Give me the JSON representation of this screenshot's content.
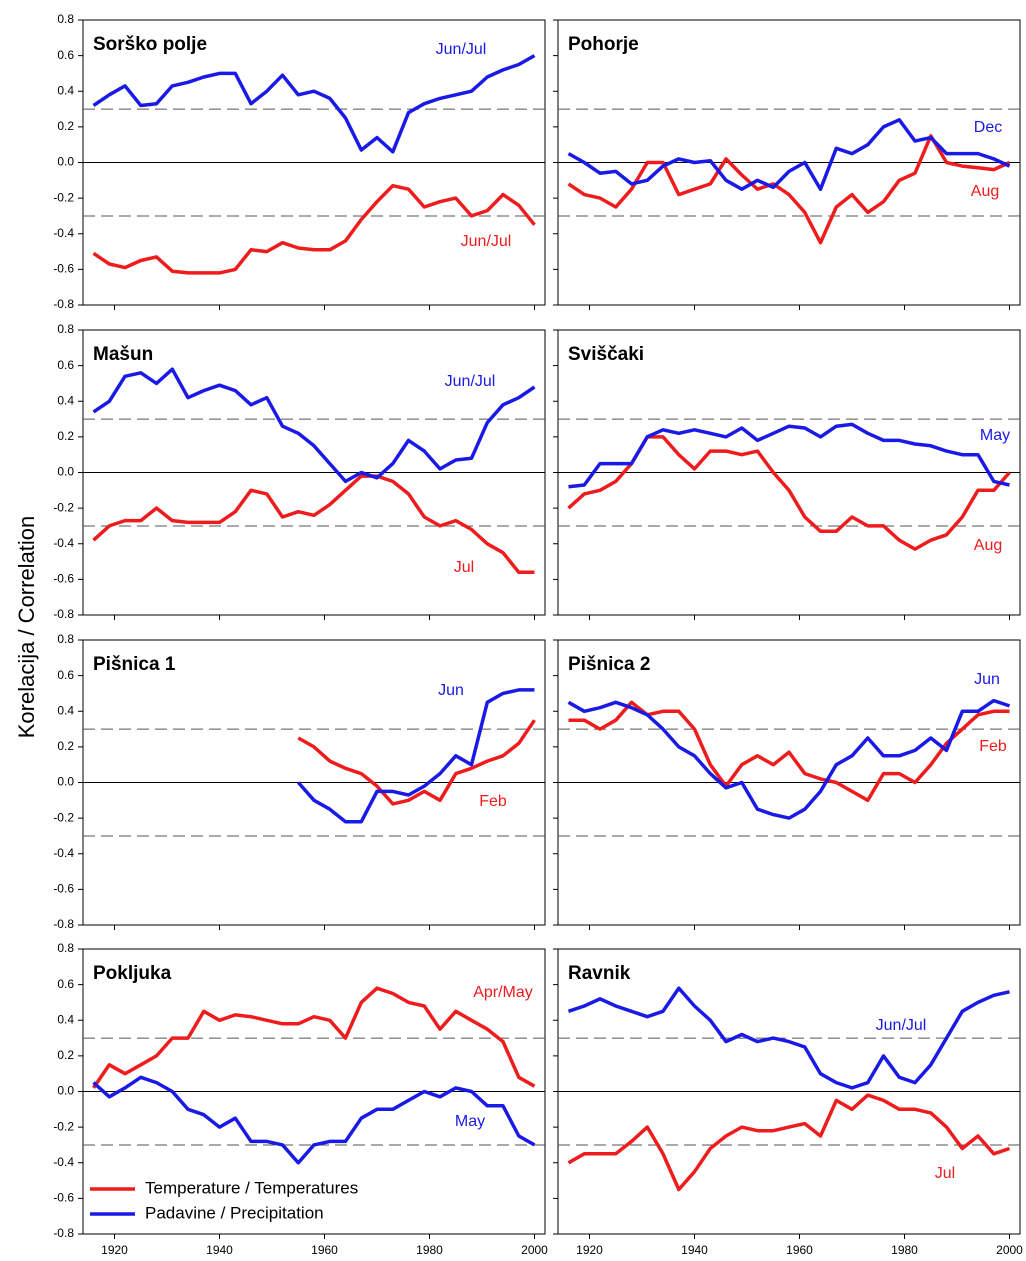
{
  "ylabel": "Korelacija / Correlation",
  "chart_data": [
    {
      "type": "line",
      "title": "Sorško polje",
      "x": [
        1916,
        1919,
        1922,
        1925,
        1928,
        1931,
        1934,
        1937,
        1940,
        1943,
        1946,
        1949,
        1952,
        1955,
        1958,
        1961,
        1964,
        1967,
        1970,
        1973,
        1976,
        1979,
        1982,
        1985,
        1988,
        1991,
        1994,
        1997,
        2000
      ],
      "series": [
        {
          "label": "Jun/Jul",
          "color": "#ee1c1c",
          "values": [
            -0.51,
            -0.57,
            -0.59,
            -0.55,
            -0.53,
            -0.61,
            -0.62,
            -0.62,
            -0.62,
            -0.6,
            -0.49,
            -0.5,
            -0.45,
            -0.48,
            -0.49,
            -0.49,
            -0.44,
            -0.32,
            -0.22,
            -0.13,
            -0.15,
            -0.25,
            -0.22,
            -0.2,
            -0.3,
            -0.27,
            -0.18,
            -0.24,
            -0.35
          ]
        },
        {
          "label": "Jun/Jul",
          "color": "#1a1ae6",
          "values": [
            0.32,
            0.38,
            0.43,
            0.32,
            0.33,
            0.43,
            0.45,
            0.48,
            0.5,
            0.5,
            0.33,
            0.4,
            0.49,
            0.38,
            0.4,
            0.36,
            0.25,
            0.07,
            0.14,
            0.06,
            0.28,
            0.33,
            0.36,
            0.38,
            0.4,
            0.48,
            0.52,
            0.55,
            0.6
          ]
        }
      ],
      "xlim": [
        1914,
        2002
      ],
      "xticks": [
        1920,
        1940,
        1960,
        1980,
        2000
      ],
      "ylim": [
        -0.8,
        0.8
      ],
      "yticks": [
        -0.8,
        -0.6,
        -0.4,
        -0.2,
        {
          "value": 0,
          "label": "0.0"
        },
        0.2,
        0.4,
        0.6,
        0.8
      ],
      "hlines": [
        {
          "value": 0.3,
          "style": "dashed"
        },
        {
          "value": 0,
          "style": "solid"
        },
        {
          "value": -0.3,
          "style": "dashed"
        }
      ]
    },
    {
      "type": "line",
      "title": "Pohorje",
      "x": [
        1916,
        1919,
        1922,
        1925,
        1928,
        1931,
        1934,
        1937,
        1940,
        1943,
        1946,
        1949,
        1952,
        1955,
        1958,
        1961,
        1964,
        1967,
        1970,
        1973,
        1976,
        1979,
        1982,
        1985,
        1988,
        1991,
        1994,
        1997,
        2000
      ],
      "series": [
        {
          "label": "Aug",
          "color": "#ee1c1c",
          "values": [
            -0.12,
            -0.18,
            -0.2,
            -0.25,
            -0.15,
            0,
            0,
            -0.18,
            -0.15,
            -0.12,
            0.02,
            -0.07,
            -0.15,
            -0.12,
            -0.18,
            -0.28,
            -0.45,
            -0.25,
            -0.18,
            -0.28,
            -0.22,
            -0.1,
            -0.06,
            0.15,
            0,
            -0.02,
            -0.03,
            -0.04,
            0
          ]
        },
        {
          "label": "Dec",
          "color": "#1a1ae6",
          "values": [
            0.05,
            0,
            -0.06,
            -0.05,
            -0.12,
            -0.1,
            -0.02,
            0.02,
            0,
            0.01,
            -0.1,
            -0.15,
            -0.1,
            -0.14,
            -0.05,
            0,
            -0.15,
            0.08,
            0.05,
            0.1,
            0.2,
            0.24,
            0.12,
            0.14,
            0.05,
            0.05,
            0.05,
            0.02,
            -0.02
          ]
        }
      ],
      "xlim": [
        1914,
        2002
      ],
      "xticks": [
        1920,
        1940,
        1960,
        1980,
        2000
      ],
      "ylim": [
        -0.8,
        0.8
      ],
      "yticks": [
        -0.8,
        -0.6,
        -0.4,
        -0.2,
        {
          "value": 0,
          "label": "0.0"
        },
        0.2,
        0.4,
        0.6,
        0.8
      ],
      "hlines": [
        {
          "value": 0.3,
          "style": "dashed"
        },
        {
          "value": 0,
          "style": "solid"
        },
        {
          "value": -0.3,
          "style": "dashed"
        }
      ]
    },
    {
      "type": "line",
      "title": "Mašun",
      "x": [
        1916,
        1919,
        1922,
        1925,
        1928,
        1931,
        1934,
        1937,
        1940,
        1943,
        1946,
        1949,
        1952,
        1955,
        1958,
        1961,
        1964,
        1967,
        1970,
        1973,
        1976,
        1979,
        1982,
        1985,
        1988,
        1991,
        1994,
        1997,
        2000
      ],
      "series": [
        {
          "label": "Jul",
          "color": "#ee1c1c",
          "values": [
            -0.38,
            -0.3,
            -0.27,
            -0.27,
            -0.2,
            -0.27,
            -0.28,
            -0.28,
            -0.28,
            -0.22,
            -0.1,
            -0.12,
            -0.25,
            -0.22,
            -0.24,
            -0.18,
            -0.1,
            -0.02,
            -0.02,
            -0.05,
            -0.12,
            -0.25,
            -0.3,
            -0.27,
            -0.32,
            -0.4,
            -0.45,
            -0.56,
            -0.56
          ]
        },
        {
          "label": "Jun/Jul",
          "color": "#1a1ae6",
          "values": [
            0.34,
            0.4,
            0.54,
            0.56,
            0.5,
            0.58,
            0.42,
            0.46,
            0.49,
            0.46,
            0.38,
            0.42,
            0.26,
            0.22,
            0.15,
            0.05,
            -0.05,
            0,
            -0.03,
            0.05,
            0.18,
            0.12,
            0.02,
            0.07,
            0.08,
            0.28,
            0.38,
            0.42,
            0.48
          ]
        }
      ],
      "xlim": [
        1914,
        2002
      ],
      "xticks": [
        1920,
        1940,
        1960,
        1980,
        2000
      ],
      "ylim": [
        -0.8,
        0.8
      ],
      "yticks": [
        -0.8,
        -0.6,
        -0.4,
        -0.2,
        {
          "value": 0,
          "label": "0.0"
        },
        0.2,
        0.4,
        0.6,
        0.8
      ],
      "hlines": [
        {
          "value": 0.3,
          "style": "dashed"
        },
        {
          "value": 0,
          "style": "solid"
        },
        {
          "value": -0.3,
          "style": "dashed"
        }
      ]
    },
    {
      "type": "line",
      "title": "Sviščaki",
      "x": [
        1916,
        1919,
        1922,
        1925,
        1928,
        1931,
        1934,
        1937,
        1940,
        1943,
        1946,
        1949,
        1952,
        1955,
        1958,
        1961,
        1964,
        1967,
        1970,
        1973,
        1976,
        1979,
        1982,
        1985,
        1988,
        1991,
        1994,
        1997,
        2000
      ],
      "series": [
        {
          "label": "Aug",
          "color": "#ee1c1c",
          "values": [
            -0.2,
            -0.12,
            -0.1,
            -0.05,
            0.05,
            0.2,
            0.2,
            0.1,
            0.02,
            0.12,
            0.12,
            0.1,
            0.12,
            0,
            -0.1,
            -0.25,
            -0.33,
            -0.33,
            -0.25,
            -0.3,
            -0.3,
            -0.38,
            -0.43,
            -0.38,
            -0.35,
            -0.25,
            -0.1,
            -0.1,
            0
          ]
        },
        {
          "label": "May",
          "color": "#1a1ae6",
          "values": [
            -0.08,
            -0.07,
            0.05,
            0.05,
            0.05,
            0.2,
            0.24,
            0.22,
            0.24,
            0.22,
            0.2,
            0.25,
            0.18,
            0.22,
            0.26,
            0.25,
            0.2,
            0.26,
            0.27,
            0.22,
            0.18,
            0.18,
            0.16,
            0.15,
            0.12,
            0.1,
            0.1,
            -0.05,
            -0.07
          ]
        }
      ],
      "xlim": [
        1914,
        2002
      ],
      "xticks": [
        1920,
        1940,
        1960,
        1980,
        2000
      ],
      "ylim": [
        -0.8,
        0.8
      ],
      "yticks": [
        -0.8,
        -0.6,
        -0.4,
        -0.2,
        {
          "value": 0,
          "label": "0.0"
        },
        0.2,
        0.4,
        0.6,
        0.8
      ],
      "hlines": [
        {
          "value": 0.3,
          "style": "dashed"
        },
        {
          "value": 0,
          "style": "solid"
        },
        {
          "value": -0.3,
          "style": "dashed"
        }
      ]
    },
    {
      "type": "line",
      "title": "Pišnica 1",
      "x": [
        1916,
        1919,
        1922,
        1925,
        1928,
        1931,
        1934,
        1937,
        1940,
        1943,
        1946,
        1949,
        1952,
        1955,
        1958,
        1961,
        1964,
        1967,
        1970,
        1973,
        1976,
        1979,
        1982,
        1985,
        1988,
        1991,
        1994,
        1997,
        2000
      ],
      "series": [
        {
          "label": "Feb",
          "color": "#ee1c1c",
          "values": [
            null,
            null,
            null,
            null,
            null,
            null,
            null,
            null,
            null,
            null,
            null,
            null,
            null,
            0.25,
            0.2,
            0.12,
            0.08,
            0.05,
            -0.02,
            -0.12,
            -0.1,
            -0.05,
            -0.1,
            0.05,
            0.08,
            0.12,
            0.15,
            0.22,
            0.35
          ]
        },
        {
          "label": "Jun",
          "color": "#1a1ae6",
          "values": [
            null,
            null,
            null,
            null,
            null,
            null,
            null,
            null,
            null,
            null,
            null,
            null,
            null,
            0,
            -0.1,
            -0.15,
            -0.22,
            -0.22,
            -0.05,
            -0.05,
            -0.07,
            -0.02,
            0.05,
            0.15,
            0.1,
            0.45,
            0.5,
            0.52,
            0.52
          ]
        }
      ],
      "xlim": [
        1914,
        2002
      ],
      "xticks": [
        1920,
        1940,
        1960,
        1980,
        2000
      ],
      "ylim": [
        -0.8,
        0.8
      ],
      "yticks": [
        -0.8,
        -0.6,
        -0.4,
        -0.2,
        {
          "value": 0,
          "label": "0.0"
        },
        0.2,
        0.4,
        0.6,
        0.8
      ],
      "hlines": [
        {
          "value": 0.3,
          "style": "dashed"
        },
        {
          "value": 0,
          "style": "solid"
        },
        {
          "value": -0.3,
          "style": "dashed"
        }
      ]
    },
    {
      "type": "line",
      "title": "Pišnica 2",
      "x": [
        1916,
        1919,
        1922,
        1925,
        1928,
        1931,
        1934,
        1937,
        1940,
        1943,
        1946,
        1949,
        1952,
        1955,
        1958,
        1961,
        1964,
        1967,
        1970,
        1973,
        1976,
        1979,
        1982,
        1985,
        1988,
        1991,
        1994,
        1997,
        2000
      ],
      "series": [
        {
          "label": "Feb",
          "color": "#ee1c1c",
          "values": [
            0.35,
            0.35,
            0.3,
            0.35,
            0.45,
            0.38,
            0.4,
            0.4,
            0.3,
            0.1,
            -0.02,
            0.1,
            0.15,
            0.1,
            0.17,
            0.05,
            0.02,
            0,
            -0.05,
            -0.1,
            0.05,
            0.05,
            0,
            0.1,
            0.22,
            0.3,
            0.38,
            0.4,
            0.4
          ]
        },
        {
          "label": "Jun",
          "color": "#1a1ae6",
          "values": [
            0.45,
            0.4,
            0.42,
            0.45,
            0.42,
            0.38,
            0.3,
            0.2,
            0.15,
            0.05,
            -0.03,
            0,
            -0.15,
            -0.18,
            -0.2,
            -0.15,
            -0.05,
            0.1,
            0.15,
            0.25,
            0.15,
            0.15,
            0.18,
            0.25,
            0.18,
            0.4,
            0.4,
            0.46,
            0.43
          ]
        }
      ],
      "xlim": [
        1914,
        2002
      ],
      "xticks": [
        1920,
        1940,
        1960,
        1980,
        2000
      ],
      "ylim": [
        -0.8,
        0.8
      ],
      "yticks": [
        -0.8,
        -0.6,
        -0.4,
        -0.2,
        {
          "value": 0,
          "label": "0.0"
        },
        0.2,
        0.4,
        0.6,
        0.8
      ],
      "hlines": [
        {
          "value": 0.3,
          "style": "dashed"
        },
        {
          "value": 0,
          "style": "solid"
        },
        {
          "value": -0.3,
          "style": "dashed"
        }
      ]
    },
    {
      "type": "line",
      "title": "Pokljuka",
      "x": [
        1916,
        1919,
        1922,
        1925,
        1928,
        1931,
        1934,
        1937,
        1940,
        1943,
        1946,
        1949,
        1952,
        1955,
        1958,
        1961,
        1964,
        1967,
        1970,
        1973,
        1976,
        1979,
        1982,
        1985,
        1988,
        1991,
        1994,
        1997,
        2000
      ],
      "series": [
        {
          "name": "Temperature / Temperatures",
          "label": "Apr/May",
          "color": "#ee1c1c",
          "values": [
            0.02,
            0.15,
            0.1,
            0.15,
            0.2,
            0.3,
            0.3,
            0.45,
            0.4,
            0.43,
            0.42,
            0.4,
            0.38,
            0.38,
            0.42,
            0.4,
            0.3,
            0.5,
            0.58,
            0.55,
            0.5,
            0.48,
            0.35,
            0.45,
            0.4,
            0.35,
            0.28,
            0.08,
            0.03
          ]
        },
        {
          "name": "Padavine / Precipitation",
          "label": "May",
          "color": "#1a1ae6",
          "values": [
            0.05,
            -0.03,
            0.02,
            0.08,
            0.05,
            0,
            -0.1,
            -0.13,
            -0.2,
            -0.15,
            -0.28,
            -0.28,
            -0.3,
            -0.4,
            -0.3,
            -0.28,
            -0.28,
            -0.15,
            -0.1,
            -0.1,
            -0.05,
            0,
            -0.03,
            0.02,
            0,
            -0.08,
            -0.08,
            -0.25,
            -0.3
          ]
        }
      ],
      "legend": "lower left",
      "xlim": [
        1914,
        2002
      ],
      "xticks": [
        1920,
        1940,
        1960,
        1980,
        2000
      ],
      "ylim": [
        -0.8,
        0.8
      ],
      "yticks": [
        -0.8,
        -0.6,
        -0.4,
        -0.2,
        {
          "value": 0,
          "label": "0.0"
        },
        0.2,
        0.4,
        0.6,
        0.8
      ],
      "hlines": [
        {
          "value": 0.3,
          "style": "dashed"
        },
        {
          "value": 0,
          "style": "solid"
        },
        {
          "value": -0.3,
          "style": "dashed"
        }
      ]
    },
    {
      "type": "line",
      "title": "Ravnik",
      "x": [
        1916,
        1919,
        1922,
        1925,
        1928,
        1931,
        1934,
        1937,
        1940,
        1943,
        1946,
        1949,
        1952,
        1955,
        1958,
        1961,
        1964,
        1967,
        1970,
        1973,
        1976,
        1979,
        1982,
        1985,
        1988,
        1991,
        1994,
        1997,
        2000
      ],
      "series": [
        {
          "label": "Jul",
          "color": "#ee1c1c",
          "values": [
            -0.4,
            -0.35,
            -0.35,
            -0.35,
            -0.28,
            -0.2,
            -0.35,
            -0.55,
            -0.45,
            -0.32,
            -0.25,
            -0.2,
            -0.22,
            -0.22,
            -0.2,
            -0.18,
            -0.25,
            -0.05,
            -0.1,
            -0.02,
            -0.05,
            -0.1,
            -0.1,
            -0.12,
            -0.2,
            -0.32,
            -0.25,
            -0.35,
            -0.32
          ]
        },
        {
          "label": "Jun/Jul",
          "color": "#1a1ae6",
          "values": [
            0.45,
            0.48,
            0.52,
            0.48,
            0.45,
            0.42,
            0.45,
            0.58,
            0.48,
            0.4,
            0.28,
            0.32,
            0.28,
            0.3,
            0.28,
            0.25,
            0.1,
            0.05,
            0.02,
            0.05,
            0.2,
            0.08,
            0.05,
            0.15,
            0.3,
            0.45,
            0.5,
            0.54,
            0.56
          ]
        }
      ],
      "xlim": [
        1914,
        2002
      ],
      "xticks": [
        1920,
        1940,
        1960,
        1980,
        2000
      ],
      "ylim": [
        -0.8,
        0.8
      ],
      "yticks": [
        -0.8,
        -0.6,
        -0.4,
        -0.2,
        {
          "value": 0,
          "label": "0.0"
        },
        0.2,
        0.4,
        0.6,
        0.8
      ],
      "hlines": [
        {
          "value": 0.3,
          "style": "dashed"
        },
        {
          "value": 0,
          "style": "solid"
        },
        {
          "value": -0.3,
          "style": "dashed"
        }
      ]
    }
  ]
}
